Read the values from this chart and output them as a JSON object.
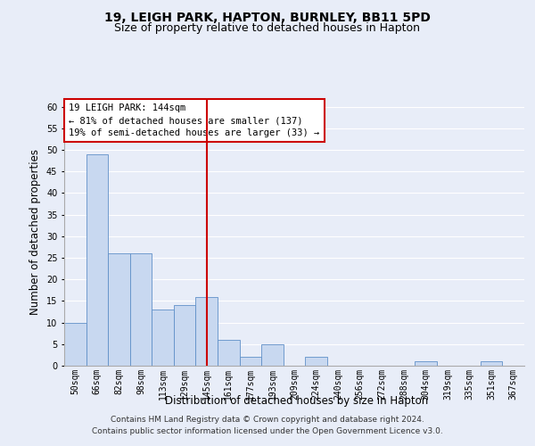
{
  "title": "19, LEIGH PARK, HAPTON, BURNLEY, BB11 5PD",
  "subtitle": "Size of property relative to detached houses in Hapton",
  "xlabel": "Distribution of detached houses by size in Hapton",
  "ylabel": "Number of detached properties",
  "categories": [
    "50sqm",
    "66sqm",
    "82sqm",
    "98sqm",
    "113sqm",
    "129sqm",
    "145sqm",
    "161sqm",
    "177sqm",
    "193sqm",
    "209sqm",
    "224sqm",
    "240sqm",
    "256sqm",
    "272sqm",
    "288sqm",
    "304sqm",
    "319sqm",
    "335sqm",
    "351sqm",
    "367sqm"
  ],
  "values": [
    10,
    49,
    26,
    26,
    13,
    14,
    16,
    6,
    2,
    5,
    0,
    2,
    0,
    0,
    0,
    0,
    1,
    0,
    0,
    1,
    0
  ],
  "bar_color": "#c8d8f0",
  "bar_edge_color": "#6090c8",
  "vline_x": 6,
  "vline_color": "#cc0000",
  "annotation_text": "19 LEIGH PARK: 144sqm\n← 81% of detached houses are smaller (137)\n19% of semi-detached houses are larger (33) →",
  "annotation_box_color": "#ffffff",
  "annotation_box_edge": "#cc0000",
  "ylim": [
    0,
    62
  ],
  "yticks": [
    0,
    5,
    10,
    15,
    20,
    25,
    30,
    35,
    40,
    45,
    50,
    55,
    60
  ],
  "footer1": "Contains HM Land Registry data © Crown copyright and database right 2024.",
  "footer2": "Contains public sector information licensed under the Open Government Licence v3.0.",
  "background_color": "#e8edf8",
  "grid_color": "#ffffff",
  "title_fontsize": 10,
  "subtitle_fontsize": 9,
  "axis_label_fontsize": 8.5,
  "tick_fontsize": 7,
  "footer_fontsize": 6.5,
  "annotation_fontsize": 7.5
}
